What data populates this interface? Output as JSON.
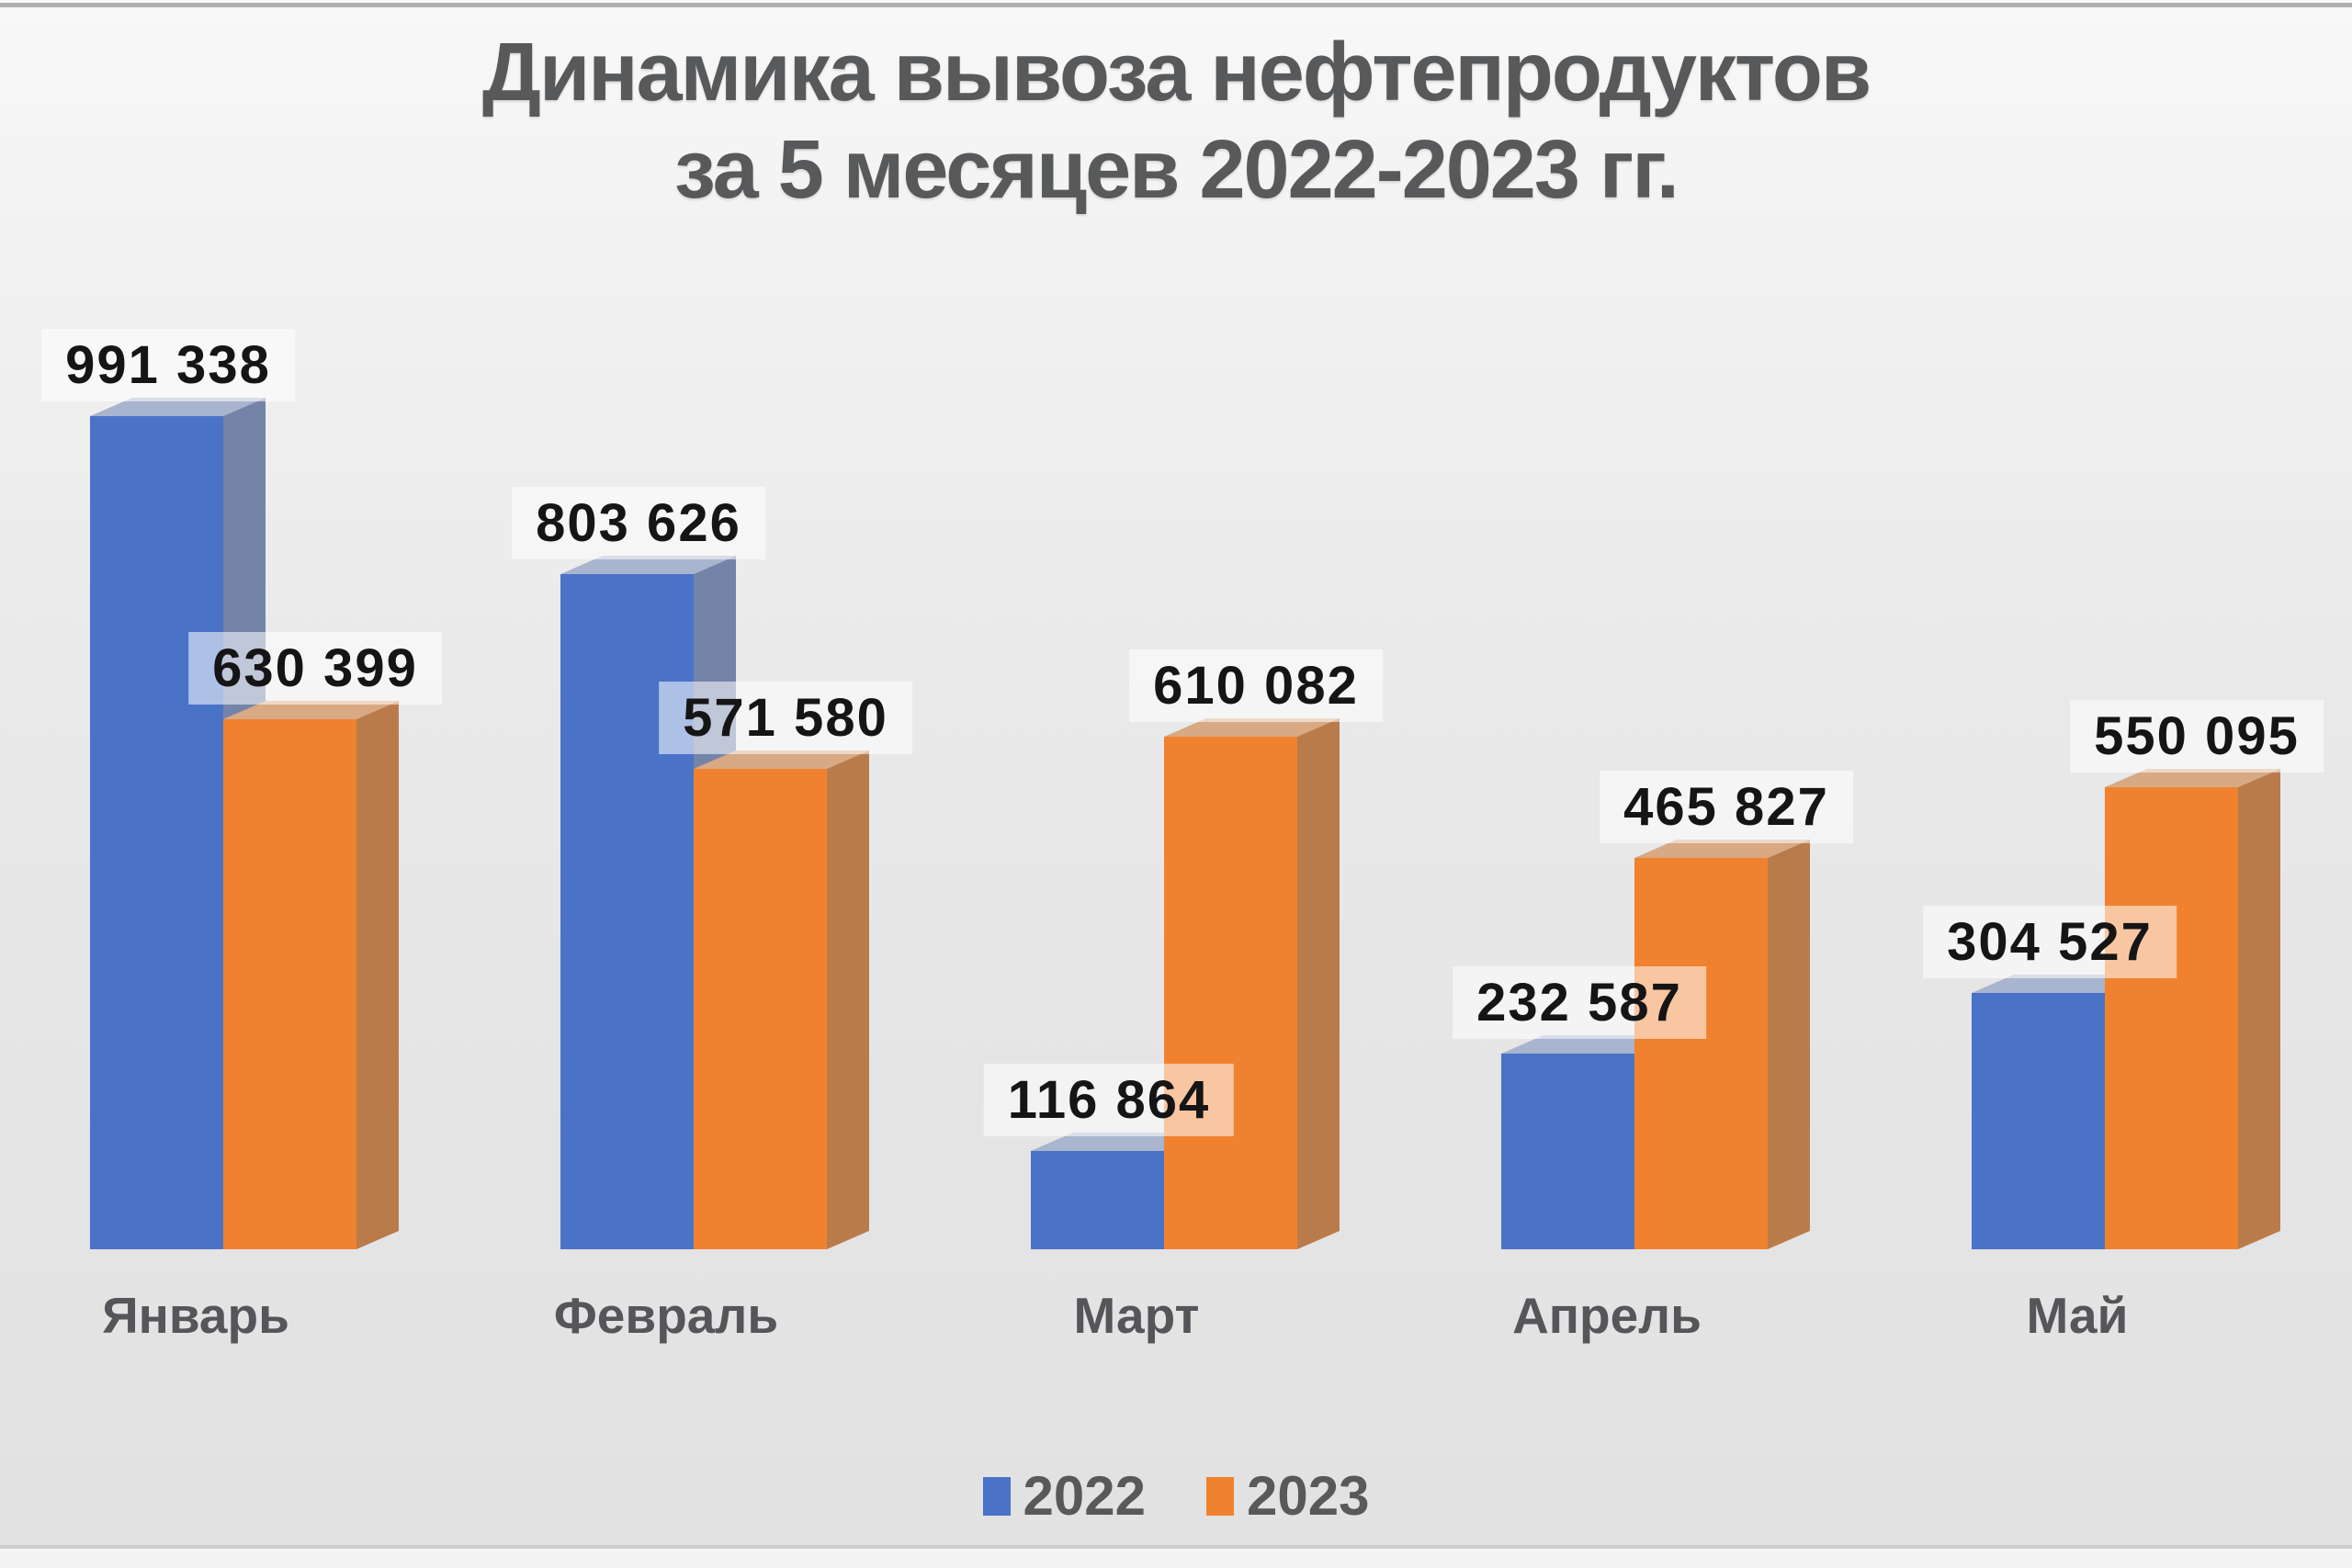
{
  "title": {
    "line1": "Динамика вывоза нефтепродуктов",
    "line2": "за 5 месяцев 2022-2023 гг."
  },
  "legend": {
    "items": [
      {
        "label": "2022",
        "color": "#4a73c8"
      },
      {
        "label": "2023",
        "color": "#f0822f"
      }
    ],
    "position": "bottom"
  },
  "chart_data": {
    "type": "bar",
    "style": "3d-column",
    "title": "Динамика вывоза нефтепродуктов за 5 месяцев 2022-2023 гг.",
    "categories": [
      "Январь",
      "Февраль",
      "Март",
      "Апрель",
      "Май"
    ],
    "series": [
      {
        "name": "2022",
        "values": [
          991338,
          803626,
          116864,
          232587,
          304527
        ],
        "display": [
          "991 338",
          "803 626",
          "116 864",
          "232 587",
          "304 527"
        ]
      },
      {
        "name": "2023",
        "values": [
          630399,
          571580,
          610082,
          465827,
          550095
        ],
        "display": [
          "630 399",
          "571 580",
          "610 082",
          "465 827",
          "550 095"
        ]
      }
    ],
    "ylim": [
      0,
      1000000
    ],
    "grid": false,
    "axes_visible": false,
    "data_labels": true,
    "legend_position": "bottom"
  },
  "colors": {
    "series_2022": {
      "front": "#4a73c8",
      "top": "#a9b4ce",
      "side": "#7484a8"
    },
    "series_2023": {
      "front": "#f0822f",
      "top": "#d8a983",
      "side": "#ba7b4b"
    },
    "label_box_bg": "rgba(255,255,255,0.55)",
    "value_text": "#151515",
    "heading_text": "#58595b",
    "background": "#e8e8e8"
  }
}
